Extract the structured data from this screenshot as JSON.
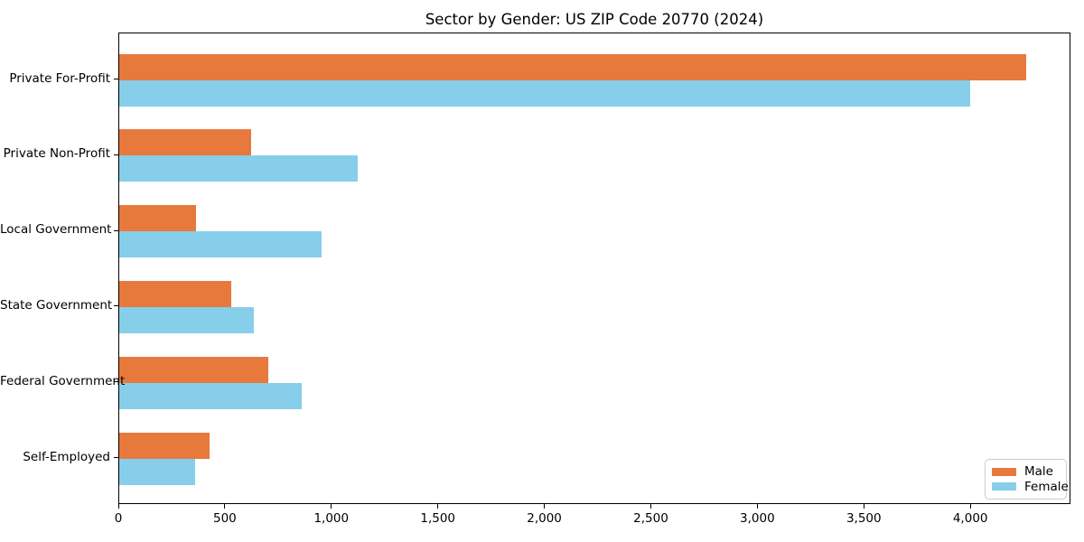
{
  "title": "Sector by Gender: US ZIP Code 20770 (2024)",
  "colors": {
    "male": "#e8793d",
    "female": "#87ceeb",
    "axis": "#000000",
    "legend_border": "#cccccc",
    "background": "#ffffff"
  },
  "legend": {
    "items": [
      {
        "label": "Male",
        "color_key": "male"
      },
      {
        "label": "Female",
        "color_key": "female"
      }
    ],
    "position": "lower right"
  },
  "chart_data": {
    "type": "bar",
    "orientation": "horizontal",
    "title": "Sector by Gender: US ZIP Code 20770 (2024)",
    "categories": [
      "Private For-Profit",
      "Private Non-Profit",
      "Local Government",
      "State Government",
      "Federal Government",
      "Self-Employed"
    ],
    "series": [
      {
        "name": "Male",
        "color_key": "male",
        "values": [
          4260,
          620,
          360,
          525,
          700,
          425
        ]
      },
      {
        "name": "Female",
        "color_key": "female",
        "values": [
          3995,
          1120,
          950,
          630,
          855,
          355
        ]
      }
    ],
    "xlabel": "",
    "ylabel": "",
    "xlim": [
      0,
      4470
    ],
    "xticks": [
      0,
      500,
      1000,
      1500,
      2000,
      2500,
      3000,
      3500,
      4000
    ],
    "xtick_labels": [
      "0",
      "500",
      "1,000",
      "1,500",
      "2,000",
      "2,500",
      "3,000",
      "3,500",
      "4,000"
    ],
    "grid": false,
    "legend_position": "lower right"
  }
}
